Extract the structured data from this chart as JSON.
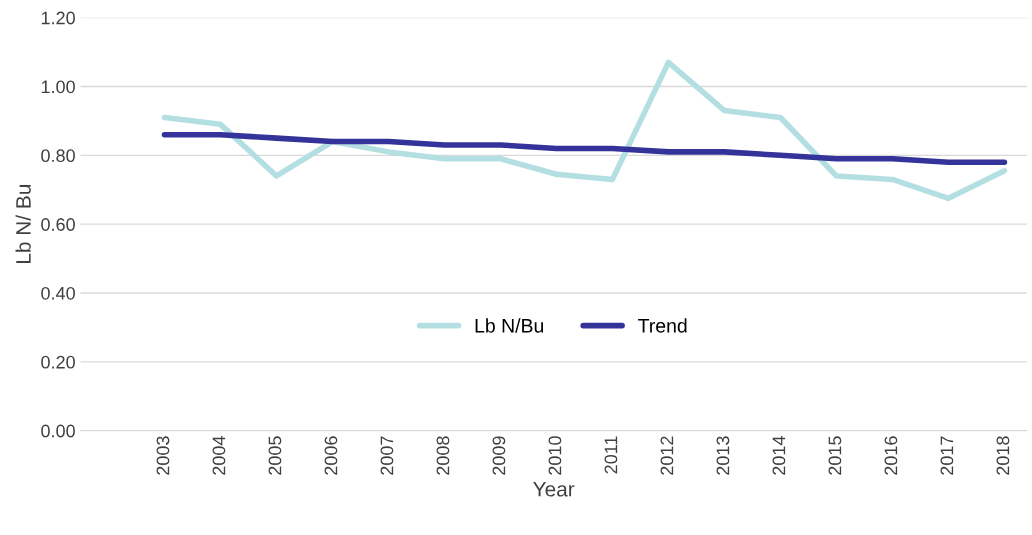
{
  "chart_data": {
    "type": "line",
    "xlabel": "Year",
    "ylabel": "Lb N/ Bu",
    "categories": [
      "2003",
      "2004",
      "2005",
      "2006",
      "2007",
      "2008",
      "2009",
      "2010",
      "2011",
      "2012",
      "2013",
      "2014",
      "2015",
      "2016",
      "2017",
      "2018"
    ],
    "series": [
      {
        "name": "Lb N/Bu",
        "color": "#b4dfe2",
        "values": [
          0.91,
          0.89,
          0.74,
          0.84,
          0.81,
          0.79,
          0.79,
          0.745,
          0.73,
          1.07,
          0.93,
          0.91,
          0.74,
          0.73,
          0.675,
          0.755
        ]
      },
      {
        "name": "Trend",
        "color": "#333399",
        "values": [
          0.86,
          0.86,
          0.85,
          0.84,
          0.84,
          0.83,
          0.83,
          0.82,
          0.82,
          0.81,
          0.81,
          0.8,
          0.79,
          0.79,
          0.78,
          0.78
        ]
      }
    ],
    "ylim": [
      0,
      1.2
    ],
    "yticks": [
      {
        "value": 0,
        "label": "0.00"
      },
      {
        "value": 0.2,
        "label": "0.20"
      },
      {
        "value": 0.4,
        "label": "0.40"
      },
      {
        "value": 0.6,
        "label": "0.60"
      },
      {
        "value": 0.8,
        "label": "0.80"
      },
      {
        "value": 1.0,
        "label": "1.00"
      },
      {
        "value": 1.2,
        "label": "1.20"
      }
    ],
    "grid": "y",
    "legend": "center",
    "marker": "none",
    "line_style": "solid"
  }
}
